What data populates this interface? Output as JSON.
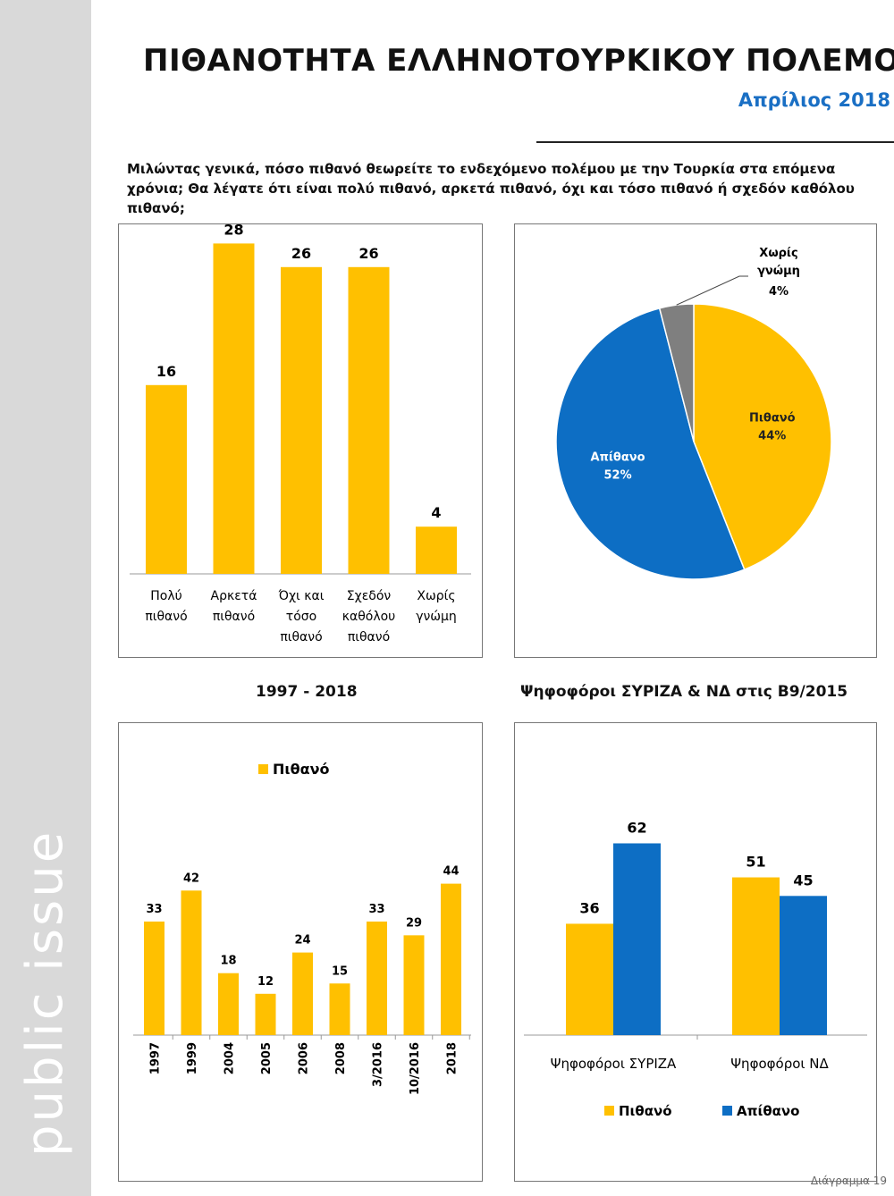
{
  "brand": "public issue",
  "title": "ΠΙΘΑΝΟΤΗΤΑ ΕΛΛΗΝΟΤΟΥΡΚΙΚΟΥ ΠΟΛΕΜΟΥ",
  "subtitle": "Απρίλιος 2018",
  "question": "Μιλώντας γενικά, πόσο πιθανό θεωρείτε το ενδεχόμενο πολέμου με την Τουρκία στα επόμενα χρόνια; Θα λέγατε ότι είναι πολύ πιθανό, αρκετά πιθανό, όχι και τόσο πιθανό ή σχεδόν καθόλου πιθανό;",
  "footer": "Διάγραμμα 19",
  "colors": {
    "yellow": "#ffc000",
    "blue": "#0d6ec4",
    "gray": "#7f7f7f"
  },
  "chart_data": [
    {
      "type": "bar",
      "title": "",
      "categories": [
        [
          "Πολύ",
          "πιθανό"
        ],
        [
          "Αρκετά",
          "πιθανό"
        ],
        [
          "Όχι και",
          "τόσο",
          "πιθανό"
        ],
        [
          "Σχεδόν",
          "καθόλου",
          "πιθανό"
        ],
        [
          "Χωρίς",
          "γνώμη"
        ]
      ],
      "values": [
        16,
        28,
        26,
        26,
        4
      ],
      "ylim": [
        0,
        40
      ]
    },
    {
      "type": "pie",
      "title": "",
      "slices": [
        {
          "label": "Πιθανό",
          "value": 44,
          "value_label": "44%",
          "color": "#ffc000"
        },
        {
          "label": "Απίθανο",
          "value": 52,
          "value_label": "52%",
          "color": "#0d6ec4"
        },
        {
          "label": "Χωρίς γνώμη",
          "value": 4,
          "value_label": "4%",
          "color": "#7f7f7f"
        }
      ]
    },
    {
      "type": "bar",
      "title": "1997 - 2018",
      "categories": [
        "1997",
        "1999",
        "2004",
        "2005",
        "2006",
        "2008",
        "3/2016",
        "10/2016",
        "2018"
      ],
      "series": [
        {
          "name": "Πιθανό",
          "values": [
            33,
            42,
            18,
            12,
            24,
            15,
            33,
            29,
            44
          ]
        }
      ],
      "ylim": [
        0,
        72
      ],
      "legend": "top"
    },
    {
      "type": "bar",
      "title": "Ψηφοφόροι ΣΥΡΙΖΑ & ΝΔ στις Β9/2015",
      "categories": [
        "Ψηφοφόροι ΣΥΡΙΖΑ",
        "Ψηφοφόροι ΝΔ"
      ],
      "series": [
        {
          "name": "Πιθανό",
          "values": [
            36,
            51
          ]
        },
        {
          "name": "Απίθανο",
          "values": [
            62,
            45
          ]
        }
      ],
      "ylim": [
        0,
        70
      ],
      "legend": "bottom"
    }
  ]
}
